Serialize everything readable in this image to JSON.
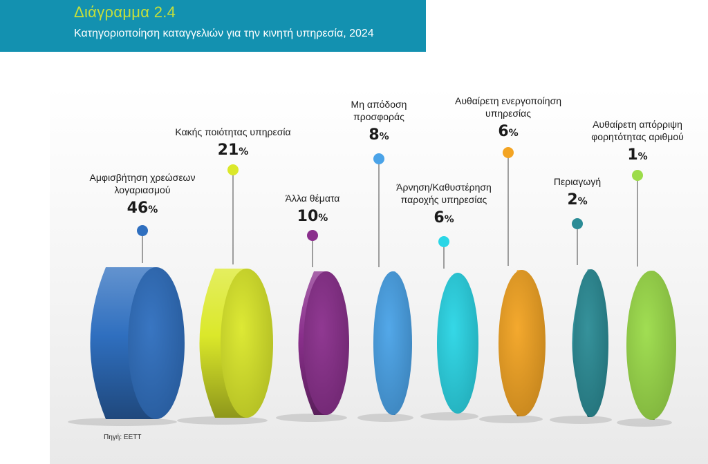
{
  "header": {
    "title": "Διάγραμμα 2.4",
    "subtitle": "Κατηγοριοποίηση καταγγελιών για την κινητή υπηρεσία, 2024"
  },
  "source": "Πηγή: ΕΕΤΤ",
  "chart_data": {
    "type": "bar",
    "unit": "%",
    "categories": [
      [
        "Αμφισβήτηση χρεώσεων",
        "λογαριασμού"
      ],
      [
        "Κακής ποιότητας υπηρεσία"
      ],
      [
        "Άλλα θέματα"
      ],
      [
        "Μη απόδοση",
        "προσφοράς"
      ],
      [
        "Άρνηση/Καθυστέρηση",
        "παροχής υπηρεσίας"
      ],
      [
        "Αυθαίρετη ενεργοποίηση",
        "υπηρεσίας"
      ],
      [
        "Περιαγωγή"
      ],
      [
        "Αυθαίρετη απόρριψη",
        "φορητότητας αριθμού"
      ]
    ],
    "values": [
      46,
      21,
      10,
      8,
      6,
      6,
      2,
      1
    ],
    "colors": [
      "#2f6fbf",
      "#dbe82a",
      "#8a2f8c",
      "#4aa3e8",
      "#2ad6e6",
      "#f3a423",
      "#2b8c96",
      "#9cdc4a"
    ]
  }
}
